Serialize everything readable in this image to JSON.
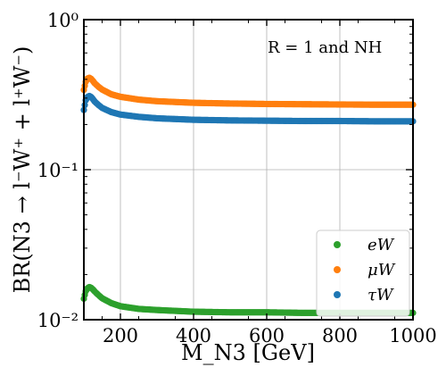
{
  "chart_data": {
    "type": "scatter",
    "title": "",
    "xlabel": "M_N3 [GeV]",
    "ylabel": "BR(N3 → l⁻W⁺ + l⁺W⁻)",
    "xlim": [
      100,
      1000
    ],
    "ylim": [
      0.01,
      1
    ],
    "yscale": "log",
    "grid": true,
    "legend_position": "bottom-right",
    "x_ticks": [
      "200",
      "400",
      "600",
      "800",
      "1000"
    ],
    "y_ticks": [
      {
        "value": 0.01,
        "label": "10⁻²"
      },
      {
        "value": 0.1,
        "label": "10⁻¹"
      },
      {
        "value": 1,
        "label": "10⁰"
      }
    ],
    "annotations": [
      "R = 1 and NH"
    ],
    "series": [
      {
        "name": "eW",
        "color": "#2ca02c",
        "x": [
          100,
          105,
          110,
          115,
          120,
          125,
          130,
          140,
          150,
          175,
          200,
          250,
          300,
          400,
          500,
          600,
          700,
          800,
          900,
          1000
        ],
        "y": [
          0.0138,
          0.0155,
          0.0162,
          0.0165,
          0.0163,
          0.0159,
          0.0154,
          0.0146,
          0.0139,
          0.0129,
          0.0123,
          0.0118,
          0.0116,
          0.0113,
          0.0112,
          0.0112,
          0.0111,
          0.0111,
          0.0111,
          0.0111
        ]
      },
      {
        "name": "μW",
        "color": "#ff7f0e",
        "x": [
          100,
          105,
          110,
          115,
          120,
          125,
          130,
          140,
          150,
          175,
          200,
          250,
          300,
          400,
          500,
          600,
          700,
          800,
          900,
          1000
        ],
        "y": [
          0.34,
          0.385,
          0.405,
          0.41,
          0.403,
          0.39,
          0.376,
          0.357,
          0.342,
          0.318,
          0.306,
          0.293,
          0.286,
          0.279,
          0.276,
          0.274,
          0.273,
          0.272,
          0.271,
          0.271
        ]
      },
      {
        "name": "τW",
        "color": "#1f77b4",
        "x": [
          100,
          105,
          110,
          115,
          120,
          125,
          130,
          140,
          150,
          175,
          200,
          250,
          300,
          400,
          500,
          600,
          700,
          800,
          900,
          1000
        ],
        "y": [
          0.25,
          0.29,
          0.305,
          0.31,
          0.305,
          0.295,
          0.284,
          0.27,
          0.258,
          0.242,
          0.233,
          0.225,
          0.22,
          0.215,
          0.213,
          0.212,
          0.211,
          0.211,
          0.21,
          0.21
        ]
      }
    ]
  }
}
